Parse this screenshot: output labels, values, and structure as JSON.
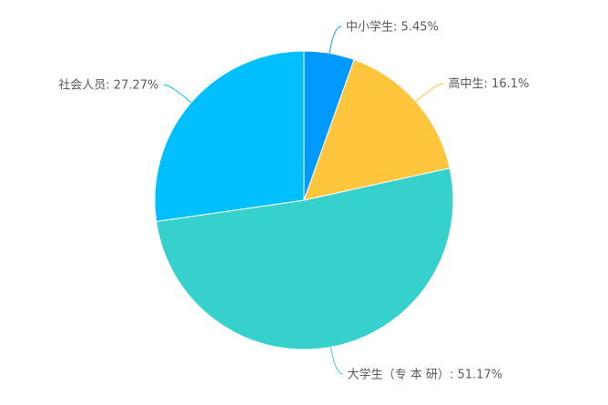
{
  "chart_data": {
    "type": "pie",
    "start_angle": "top",
    "direction": "clockwise",
    "slices": [
      {
        "label": "中小学生",
        "value": 5.45,
        "display": "中小学生: 5.45%",
        "color": "#0099ff"
      },
      {
        "label": "高中生",
        "value": 16.1,
        "display": "高中生: 16.1%",
        "color": "#ffc53d"
      },
      {
        "label": "大学生（专 本 研）",
        "value": 51.17,
        "display": "大学生（专 本 研）: 51.17%",
        "color": "#36d1cc"
      },
      {
        "label": "社会人员",
        "value": 27.27,
        "display": "社会人员: 27.27%",
        "color": "#00bfff"
      }
    ],
    "legend": "none",
    "unit": "%"
  }
}
